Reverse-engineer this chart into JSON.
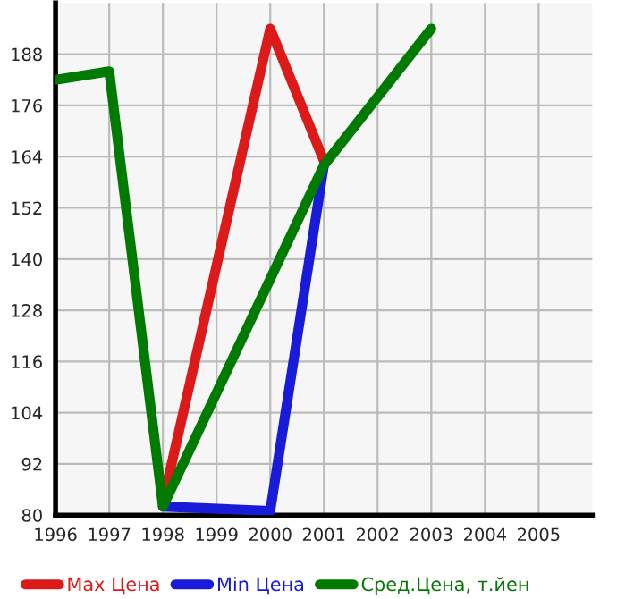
{
  "chart_data": {
    "type": "line",
    "x": [
      1996,
      1997,
      1998,
      1999,
      2000,
      2001,
      2002,
      2003
    ],
    "series": [
      {
        "name": "Max Цена",
        "color": "#dd1a1a",
        "values": [
          null,
          null,
          83,
          null,
          194,
          163,
          null,
          null
        ]
      },
      {
        "name": "Min Цена",
        "color": "#1a1ad9",
        "values": [
          null,
          null,
          82,
          null,
          81,
          162,
          null,
          null
        ]
      },
      {
        "name": "Сред.Цена, т.йен",
        "color": "#007a00",
        "values": [
          182,
          184,
          82,
          null,
          null,
          162,
          null,
          194
        ]
      }
    ],
    "xlim": [
      1996,
      2006
    ],
    "xticks": [
      1996,
      1997,
      1998,
      1999,
      2000,
      2001,
      2002,
      2003,
      2004,
      2005
    ],
    "ylim": [
      80,
      200
    ],
    "yticks": [
      80,
      92,
      104,
      116,
      128,
      140,
      152,
      164,
      176,
      188
    ],
    "grid": true,
    "legend": "bottom",
    "marker": "none",
    "line_style": "solid"
  }
}
